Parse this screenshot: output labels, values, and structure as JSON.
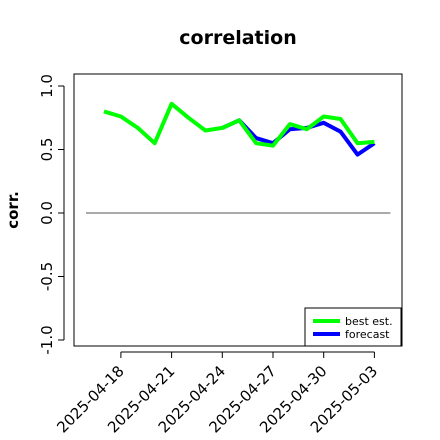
{
  "chart_data": {
    "type": "line",
    "title": "correlation",
    "xlabel": "",
    "ylabel": "corr.",
    "ylim": [
      -1.0,
      1.0
    ],
    "y_ticks": [
      -1.0,
      -0.5,
      0.0,
      0.5,
      1.0
    ],
    "y_tick_labels": [
      "-1.0",
      "-0.5",
      "0.0",
      "0.5",
      "1.0"
    ],
    "x_ticks": [
      "2025-04-18",
      "2025-04-21",
      "2025-04-24",
      "2025-04-27",
      "2025-04-30",
      "2025-05-03"
    ],
    "highlight_tick": "2025-04-24",
    "highlight_color": "#228B22",
    "reference_line": 0.0,
    "x": [
      "2025-04-17",
      "2025-04-18",
      "2025-04-19",
      "2025-04-20",
      "2025-04-21",
      "2025-04-22",
      "2025-04-23",
      "2025-04-24",
      "2025-04-25",
      "2025-04-26",
      "2025-04-27",
      "2025-04-28",
      "2025-04-29",
      "2025-04-30",
      "2025-05-01",
      "2025-05-02",
      "2025-05-03"
    ],
    "series": [
      {
        "name": "forecast",
        "color": "#0000FF",
        "values": [
          null,
          null,
          null,
          null,
          null,
          null,
          null,
          0.67,
          0.73,
          0.59,
          0.55,
          0.66,
          0.67,
          0.71,
          0.64,
          0.46,
          0.55
        ]
      },
      {
        "name": "best est.",
        "color": "#00FF00",
        "values": [
          0.8,
          0.76,
          0.67,
          0.55,
          0.86,
          0.75,
          0.65,
          0.67,
          0.73,
          0.55,
          0.53,
          0.7,
          0.66,
          0.76,
          0.74,
          0.55,
          0.56
        ]
      }
    ],
    "legend": {
      "position": "bottom-right",
      "entries": [
        {
          "label": "best est.",
          "color": "#00FF00"
        },
        {
          "label": "forecast",
          "color": "#0000FF"
        }
      ]
    }
  }
}
